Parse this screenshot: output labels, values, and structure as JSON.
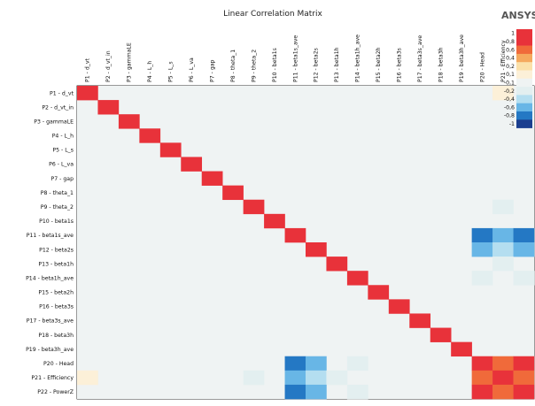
{
  "window_title": "Linear Correlation Matrix",
  "logo_text": "ANSYS",
  "colors": {
    "strong_pos": "#e8323a",
    "pos_2": "#f06a3a",
    "pos_3": "#f5a95e",
    "pos_4": "#fbe1aa",
    "pos_5": "#fcf0d8",
    "neutral": "#eff3f3",
    "neg_1": "#e3eff0",
    "neg_2": "#b4def0",
    "neg_3": "#68b6e6",
    "neg_4": "#2478c4",
    "strong_neg": "#1b3f8f",
    "grid_bg": "#eff3f3",
    "axis": "#000000"
  },
  "chart_data": {
    "type": "heatmap",
    "title": "Linear Correlation Matrix",
    "row_labels": [
      "P1 - d_vt",
      "P2 - d_vt_in",
      "P3 - gammaLE",
      "P4 - L_h",
      "P5 - L_s",
      "P6 - L_va",
      "P7 - gap",
      "P8 - theta_1",
      "P9 - theta_2",
      "P10 - beta1s",
      "P11 - beta1s_ave",
      "P12 - beta2s",
      "P13 - beta1h",
      "P14 - beta1h_ave",
      "P15 - beta2h",
      "P16 - beta3s",
      "P17 - beta3s_ave",
      "P18 - beta3h",
      "P19 - beta3h_ave",
      "P20 - Head",
      "P21 - Efficiency",
      "P22 - PowerZ"
    ],
    "col_labels": [
      "P1 - d_vt",
      "P2 - d_vt_in",
      "P3 - gammaLE",
      "P4 - L_h",
      "P5 - L_s",
      "P6 - L_va",
      "P7 - gap",
      "P8 - theta_1",
      "P9 - theta_2",
      "P10 - beta1s",
      "P11 - beta1s_ave",
      "P12 - beta2s",
      "P13 - beta1h",
      "P14 - beta1h_ave",
      "P15 - beta2h",
      "P16 - beta3s",
      "P17 - beta3s_ave",
      "P18 - beta3h",
      "P19 - beta3h_ave",
      "P20 - Head",
      "P21 - Efficiency",
      "P22 - PowerZ"
    ],
    "value_range": [
      -1,
      1
    ],
    "matrix": [
      [
        1,
        0,
        0,
        0,
        0,
        0,
        0,
        0,
        0,
        0,
        0,
        0,
        0,
        0,
        0,
        0,
        0,
        0,
        0,
        0,
        0.1,
        0
      ],
      [
        0,
        1,
        0,
        0,
        0,
        0,
        0,
        0,
        0,
        0,
        0,
        0,
        0,
        0,
        0,
        0,
        0,
        0,
        0,
        0,
        0,
        0
      ],
      [
        0,
        0,
        1,
        0,
        0,
        0,
        0,
        0,
        0,
        0,
        0,
        0,
        0,
        0,
        0,
        0,
        0,
        0,
        0,
        0,
        0,
        0
      ],
      [
        0,
        0,
        0,
        1,
        0,
        0,
        0,
        0,
        0,
        0,
        0,
        0,
        0,
        0,
        0,
        0,
        0,
        0,
        0,
        0,
        0,
        0
      ],
      [
        0,
        0,
        0,
        0,
        1,
        0,
        0,
        0,
        0,
        0,
        0,
        0,
        0,
        0,
        0,
        0,
        0,
        0,
        0,
        0,
        0,
        0
      ],
      [
        0,
        0,
        0,
        0,
        0,
        1,
        0,
        0,
        0,
        0,
        0,
        0,
        0,
        0,
        0,
        0,
        0,
        0,
        0,
        0,
        0,
        0
      ],
      [
        0,
        0,
        0,
        0,
        0,
        0,
        1,
        0,
        0,
        0,
        0,
        0,
        0,
        0,
        0,
        0,
        0,
        0,
        0,
        0,
        0,
        0
      ],
      [
        0,
        0,
        0,
        0,
        0,
        0,
        0,
        1,
        0,
        0,
        0,
        0,
        0,
        0,
        0,
        0,
        0,
        0,
        0,
        0,
        0,
        0
      ],
      [
        0,
        0,
        0,
        0,
        0,
        0,
        0,
        0,
        1,
        0,
        0,
        0,
        0,
        0,
        0,
        0,
        0,
        0,
        0,
        0,
        -0.1,
        0
      ],
      [
        0,
        0,
        0,
        0,
        0,
        0,
        0,
        0,
        0,
        1,
        0,
        0,
        0,
        0,
        0,
        0,
        0,
        0,
        0,
        0,
        0,
        0
      ],
      [
        0,
        0,
        0,
        0,
        0,
        0,
        0,
        0,
        0,
        0,
        1,
        0,
        0,
        0,
        0,
        0,
        0,
        0,
        0,
        -0.8,
        -0.6,
        -0.8
      ],
      [
        0,
        0,
        0,
        0,
        0,
        0,
        0,
        0,
        0,
        0,
        0,
        1,
        0,
        0,
        0,
        0,
        0,
        0,
        0,
        -0.6,
        -0.3,
        -0.6
      ],
      [
        0,
        0,
        0,
        0,
        0,
        0,
        0,
        0,
        0,
        0,
        0,
        0,
        1,
        0,
        0,
        0,
        0,
        0,
        0,
        0,
        -0.1,
        0
      ],
      [
        0,
        0,
        0,
        0,
        0,
        0,
        0,
        0,
        0,
        0,
        0,
        0,
        0,
        1,
        0,
        0,
        0,
        0,
        0,
        -0.1,
        0,
        -0.1
      ],
      [
        0,
        0,
        0,
        0,
        0,
        0,
        0,
        0,
        0,
        0,
        0,
        0,
        0,
        0,
        1,
        0,
        0,
        0,
        0,
        0,
        0,
        0
      ],
      [
        0,
        0,
        0,
        0,
        0,
        0,
        0,
        0,
        0,
        0,
        0,
        0,
        0,
        0,
        0,
        1,
        0,
        0,
        0,
        0,
        0,
        0
      ],
      [
        0,
        0,
        0,
        0,
        0,
        0,
        0,
        0,
        0,
        0,
        0,
        0,
        0,
        0,
        0,
        0,
        1,
        0,
        0,
        0,
        0,
        0
      ],
      [
        0,
        0,
        0,
        0,
        0,
        0,
        0,
        0,
        0,
        0,
        0,
        0,
        0,
        0,
        0,
        0,
        0,
        1,
        0,
        0,
        0,
        0
      ],
      [
        0,
        0,
        0,
        0,
        0,
        0,
        0,
        0,
        0,
        0,
        0,
        0,
        0,
        0,
        0,
        0,
        0,
        0,
        1,
        0,
        0,
        0
      ],
      [
        0,
        0,
        0,
        0,
        0,
        0,
        0,
        0,
        0,
        0,
        -0.8,
        -0.6,
        0,
        -0.1,
        0,
        0,
        0,
        0,
        0,
        1,
        0.8,
        1
      ],
      [
        0.1,
        0,
        0,
        0,
        0,
        0,
        0,
        0,
        -0.1,
        0,
        -0.6,
        -0.3,
        -0.1,
        0,
        0,
        0,
        0,
        0,
        0,
        0.8,
        1,
        0.8
      ],
      [
        0,
        0,
        0,
        0,
        0,
        0,
        0,
        0,
        0,
        0,
        -0.8,
        -0.6,
        0,
        -0.1,
        0,
        0,
        0,
        0,
        0,
        1,
        0.8,
        1
      ]
    ],
    "colorbar_ticks": [
      "1",
      "0,8",
      "0,6",
      "0,4",
      "0,2",
      "0,1",
      "-0,1",
      "-0,2",
      "-0,4",
      "-0,6",
      "-0,8",
      "-1"
    ],
    "grid": false
  }
}
